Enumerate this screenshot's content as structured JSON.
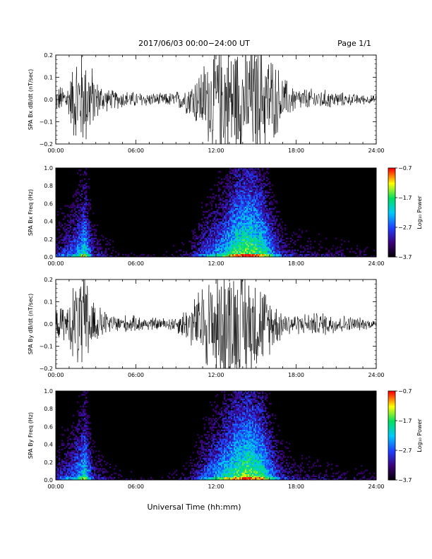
{
  "header": {
    "date_range": "2017/06/03  00:00−24:00 UT",
    "page": "Page 1/1"
  },
  "xaxis": {
    "label": "Universal Time (hh:mm)",
    "ticks": [
      "00:00",
      "06:00",
      "12:00",
      "18:00",
      "24:00"
    ]
  },
  "colorbar_label": "Log₁₀ Power",
  "colors": {
    "trace": "#000000",
    "spectrogram_background": "#000000",
    "colormap": [
      "#000000",
      "#3c0078",
      "#1e40ff",
      "#00c8ff",
      "#00e060",
      "#ffff00",
      "#ff0000"
    ]
  },
  "chart_data": [
    {
      "type": "line",
      "ylabel": "SPA Bx dB/dt (nT/sec)",
      "xlim": [
        0,
        24
      ],
      "ylim": [
        -0.2,
        0.2
      ],
      "yticks": [
        "0.2",
        "0.1",
        "0.0",
        "−0.1",
        "−0.2"
      ],
      "envelope_x_hours": [
        0,
        1,
        1.5,
        2,
        2.5,
        3,
        4,
        6,
        8,
        9,
        10,
        11,
        12,
        13,
        14,
        15,
        16,
        17,
        18,
        20,
        22,
        24
      ],
      "envelope_amplitude": [
        0.06,
        0.09,
        0.25,
        0.25,
        0.22,
        0.1,
        0.05,
        0.04,
        0.03,
        0.04,
        0.08,
        0.18,
        0.3,
        0.3,
        0.3,
        0.3,
        0.25,
        0.12,
        0.06,
        0.05,
        0.03,
        0.02
      ]
    },
    {
      "type": "heatmap",
      "ylabel": "SPA Bx Freq (Hz)",
      "xlim": [
        0,
        24
      ],
      "ylim": [
        0,
        1
      ],
      "yticks": [
        "1.0",
        "0.8",
        "0.6",
        "0.4",
        "0.2",
        "0.0"
      ],
      "colorbar_range": [
        -3.7,
        -0.7
      ],
      "colorbar_ticks": [
        "−0.7",
        "−1.7",
        "−2.7",
        "−3.7"
      ],
      "activity_x_hours": [
        0,
        1,
        1.5,
        2.2,
        2.8,
        4,
        6,
        8,
        10,
        11,
        11.8,
        12.5,
        13.5,
        14.5,
        15.5,
        16.3,
        17,
        18,
        20,
        22,
        24
      ],
      "activity_level": [
        0.35,
        0.45,
        0.55,
        0.75,
        0.35,
        0.2,
        0.12,
        0.12,
        0.2,
        0.45,
        0.55,
        0.65,
        0.85,
        0.9,
        0.8,
        0.55,
        0.35,
        0.25,
        0.2,
        0.18,
        0.15
      ]
    },
    {
      "type": "line",
      "ylabel": "SPA By dB/dt (nT/sec)",
      "xlim": [
        0,
        24
      ],
      "ylim": [
        -0.2,
        0.2
      ],
      "yticks": [
        "0.2",
        "0.1",
        "0.0",
        "−0.1",
        "−0.2"
      ],
      "envelope_x_hours": [
        0,
        1,
        1.5,
        2,
        2.5,
        3,
        4,
        6,
        8,
        9,
        10,
        11,
        12,
        13,
        14,
        15,
        16,
        17,
        18,
        20,
        22,
        24
      ],
      "envelope_amplitude": [
        0.07,
        0.1,
        0.25,
        0.25,
        0.22,
        0.1,
        0.05,
        0.04,
        0.03,
        0.04,
        0.1,
        0.2,
        0.3,
        0.3,
        0.3,
        0.25,
        0.15,
        0.07,
        0.05,
        0.06,
        0.04,
        0.02
      ]
    },
    {
      "type": "heatmap",
      "ylabel": "SPA By Freq (Hz)",
      "xlim": [
        0,
        24
      ],
      "ylim": [
        0,
        1
      ],
      "yticks": [
        "1.0",
        "0.8",
        "0.6",
        "0.4",
        "0.2",
        "0.0"
      ],
      "colorbar_range": [
        -3.7,
        -0.7
      ],
      "colorbar_ticks": [
        "−0.7",
        "−1.7",
        "−2.7",
        "−3.7"
      ],
      "activity_x_hours": [
        0,
        1,
        1.5,
        2.2,
        2.8,
        4,
        6,
        8,
        10,
        11,
        11.8,
        12.5,
        13.5,
        14.5,
        15.5,
        16.3,
        17,
        18,
        20,
        22,
        24
      ],
      "activity_level": [
        0.35,
        0.45,
        0.55,
        0.75,
        0.35,
        0.2,
        0.12,
        0.12,
        0.2,
        0.45,
        0.6,
        0.7,
        0.85,
        0.9,
        0.8,
        0.55,
        0.35,
        0.25,
        0.2,
        0.18,
        0.15
      ]
    }
  ]
}
